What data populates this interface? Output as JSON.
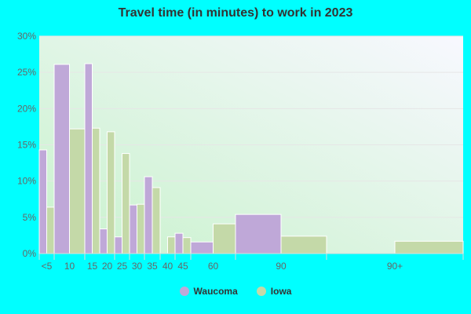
{
  "chart_data": {
    "type": "bar",
    "title": "Travel time (in minutes) to work in 2023",
    "categories": [
      "<5",
      "10",
      "15",
      "20",
      "25",
      "30",
      "35",
      "40",
      "45",
      "60",
      "90",
      "90+"
    ],
    "series": [
      {
        "name": "Waucoma",
        "color": "#bfa8d8",
        "values": [
          14.3,
          26.1,
          26.2,
          3.4,
          2.3,
          6.7,
          10.6,
          0,
          2.8,
          1.6,
          5.4,
          0
        ]
      },
      {
        "name": "Iowa",
        "color": "#c4d9a8",
        "values": [
          6.4,
          17.2,
          17.3,
          16.8,
          13.8,
          6.8,
          9.1,
          2.3,
          2.2,
          4.1,
          2.4,
          1.7
        ]
      }
    ],
    "yticks": [
      "0%",
      "5%",
      "10%",
      "15%",
      "20%",
      "25%",
      "30%"
    ],
    "ylim": [
      0,
      30
    ],
    "grid": true,
    "legend": "bottom"
  }
}
